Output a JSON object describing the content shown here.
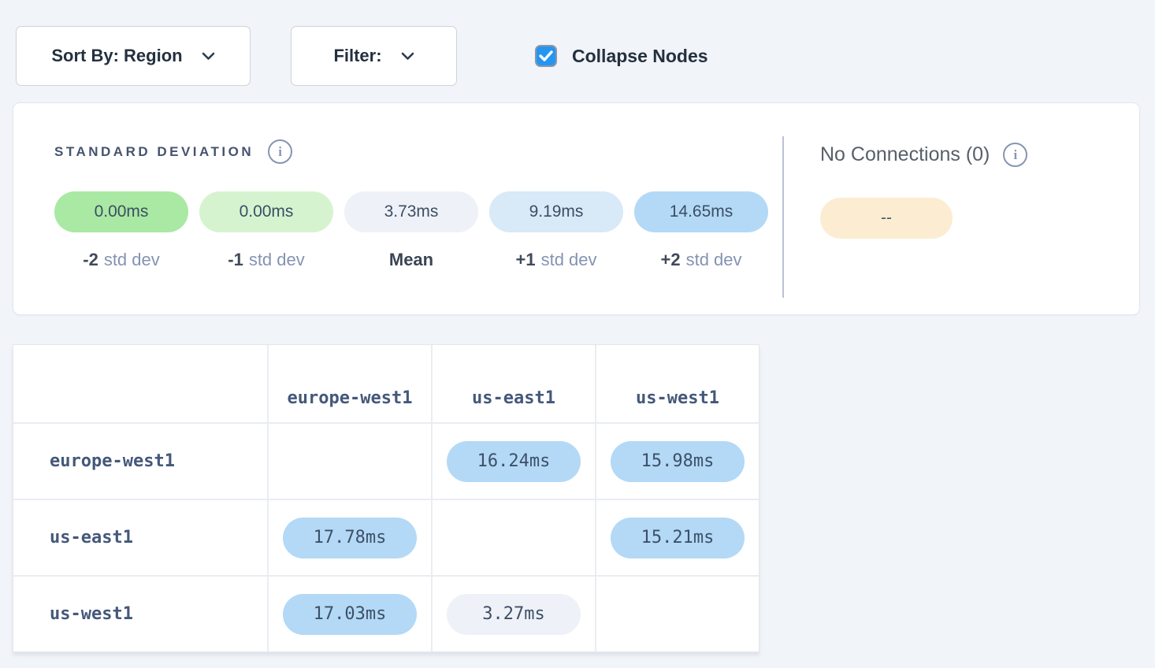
{
  "toolbar": {
    "sort_by_label": "Sort By: Region",
    "filter_label": "Filter:",
    "collapse_nodes_label": "Collapse Nodes",
    "collapse_nodes_checked": true
  },
  "colors": {
    "accent_blue": "#2496f2",
    "std_minus2": "#a9e9a3",
    "std_minus1": "#d6f3d0",
    "mean": "#eef1f7",
    "std_plus1": "#d8e9f8",
    "std_plus2": "#b3d9f6",
    "no_connection": "#fcedd2"
  },
  "legend": {
    "title": "STANDARD DEVIATION",
    "buckets": [
      {
        "value": "0.00ms",
        "label_prefix": "-2",
        "label_suffix": "std dev",
        "color": "#a9e9a3"
      },
      {
        "value": "0.00ms",
        "label_prefix": "-1",
        "label_suffix": "std dev",
        "color": "#d6f3d0"
      },
      {
        "value": "3.73ms",
        "label_prefix": "Mean",
        "label_suffix": "",
        "color": "#eef1f7"
      },
      {
        "value": "9.19ms",
        "label_prefix": "+1",
        "label_suffix": "std dev",
        "color": "#d8e9f8"
      },
      {
        "value": "14.65ms",
        "label_prefix": "+2",
        "label_suffix": "std dev",
        "color": "#b3d9f6"
      }
    ],
    "no_connections": {
      "title": "No Connections (0)",
      "pill_value": "--",
      "pill_color": "#fcedd2"
    }
  },
  "matrix": {
    "columns": [
      "europe-west1",
      "us-east1",
      "us-west1"
    ],
    "rows": [
      {
        "label": "europe-west1",
        "cells": [
          null,
          {
            "value": "16.24ms",
            "color": "#b3d9f6"
          },
          {
            "value": "15.98ms",
            "color": "#b3d9f6"
          }
        ]
      },
      {
        "label": "us-east1",
        "cells": [
          {
            "value": "17.78ms",
            "color": "#b3d9f6"
          },
          null,
          {
            "value": "15.21ms",
            "color": "#b3d9f6"
          }
        ]
      },
      {
        "label": "us-west1",
        "cells": [
          {
            "value": "17.03ms",
            "color": "#b3d9f6"
          },
          {
            "value": "3.27ms",
            "color": "#eef1f7"
          },
          null
        ]
      }
    ]
  }
}
